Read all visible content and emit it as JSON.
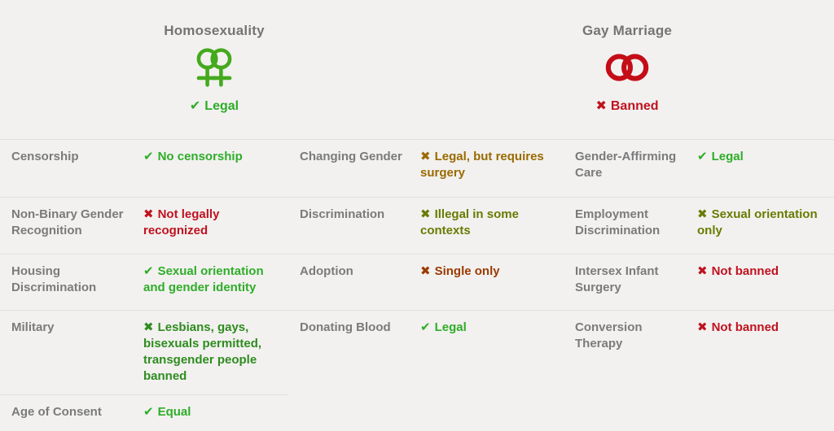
{
  "page_bg": "#f2f1f0",
  "colors": {
    "good": "#2fad28",
    "forest": "#2f8c1f",
    "olive": "#687c00",
    "amber": "#9a6a00",
    "orange": "#9c3a00",
    "bad": "#c0121f",
    "label_gray": "#7b7b7b",
    "title_gray": "#747474",
    "divider": "#e2e0df"
  },
  "headers": [
    {
      "title": "Homosexuality",
      "icon": "double-female-icon",
      "icon_color": "#44aa1d",
      "status_icon": "✔",
      "status": "Legal",
      "tone": "good"
    },
    {
      "title": "Gay Marriage",
      "icon": "interlocking-rings-icon",
      "icon_color": "#c40d17",
      "status_icon": "✖",
      "status": "Banned",
      "tone": "bad"
    }
  ],
  "tables": [
    {
      "name": "left",
      "rows": [
        {
          "label": "Censorship",
          "mark": "✔",
          "value": "No censorship",
          "tone": "good"
        },
        {
          "label": "Non-Binary Gender Recognition",
          "mark": "✖",
          "value": "Not legally recognized",
          "tone": "bad"
        },
        {
          "label": "Housing Discrimination",
          "mark": "✔",
          "value": "Sexual orientation and gender identity",
          "tone": "good"
        },
        {
          "label": "Military",
          "mark": "✖",
          "value": "Lesbians, gays, bisexuals permitted, transgender people banned",
          "tone": "forest"
        },
        {
          "label": "Age of Consent",
          "mark": "✔",
          "value": "Equal",
          "tone": "good"
        }
      ]
    },
    {
      "name": "middle",
      "rows": [
        {
          "label": "Changing Gender",
          "mark": "✖",
          "value": "Legal, but requires surgery",
          "tone": "amber"
        },
        {
          "label": "Discrimination",
          "mark": "✖",
          "value": "Illegal in some contexts",
          "tone": "olive"
        },
        {
          "label": "Adoption",
          "mark": "✖",
          "value": "Single only",
          "tone": "orange"
        },
        {
          "label": "Donating Blood",
          "mark": "✔",
          "value": "Legal",
          "tone": "good"
        }
      ]
    },
    {
      "name": "right",
      "rows": [
        {
          "label": "Gender-Affirming Care",
          "mark": "✔",
          "value": "Legal",
          "tone": "good"
        },
        {
          "label": "Employment Discrimination",
          "mark": "✖",
          "value": "Sexual orientation only",
          "tone": "olive"
        },
        {
          "label": "Intersex Infant Surgery",
          "mark": "✖",
          "value": "Not banned",
          "tone": "bad"
        },
        {
          "label": "Conversion Therapy",
          "mark": "✖",
          "value": "Not banned",
          "tone": "bad"
        }
      ]
    }
  ]
}
